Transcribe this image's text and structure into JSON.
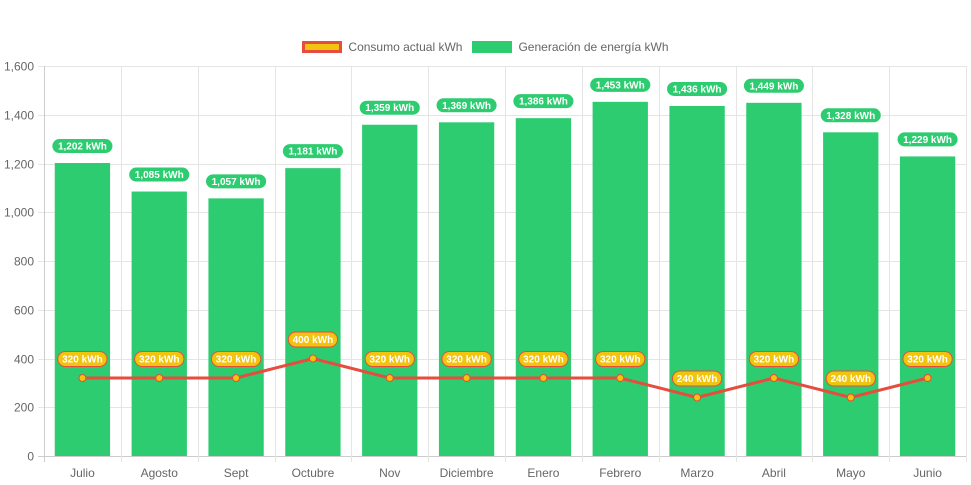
{
  "chart_data": {
    "type": "bar",
    "title": "",
    "xlabel": "",
    "ylabel": "",
    "ylim": [
      0,
      1600
    ],
    "yticks": [
      0,
      200,
      400,
      600,
      800,
      1000,
      1200,
      1400,
      1600
    ],
    "ytick_labels": [
      "0",
      "200",
      "400",
      "600",
      "800",
      "1,000",
      "1,200",
      "1,400",
      "1,600"
    ],
    "grid": true,
    "legend_position": "top",
    "categories": [
      "Julio",
      "Agosto",
      "Sept",
      "Octubre",
      "Nov",
      "Diciembre",
      "Enero",
      "Febrero",
      "Marzo",
      "Abril",
      "Mayo",
      "Junio"
    ],
    "series": [
      {
        "name": "Consumo actual kWh",
        "type": "line",
        "color": "#e74c3c",
        "fill_color": "#f1c40f",
        "values": [
          320,
          320,
          320,
          400,
          320,
          320,
          320,
          320,
          240,
          320,
          240,
          320
        ],
        "labels": [
          "320 kWh",
          "320 kWh",
          "320 kWh",
          "400 kWh",
          "320 kWh",
          "320 kWh",
          "320 kWh",
          "320 kWh",
          "240 kWh",
          "320 kWh",
          "240 kWh",
          "320 kWh"
        ]
      },
      {
        "name": "Generación de energía kWh",
        "type": "bar",
        "color": "#2ecc71",
        "values": [
          1202,
          1085,
          1057,
          1181,
          1359,
          1369,
          1386,
          1453,
          1436,
          1449,
          1328,
          1229
        ],
        "labels": [
          "1,202 kWh",
          "1,085 kWh",
          "1,057 kWh",
          "1,181 kWh",
          "1,359 kWh",
          "1,369 kWh",
          "1,386 kWh",
          "1,453 kWh",
          "1,436 kWh",
          "1,449 kWh",
          "1,328 kWh",
          "1,229 kWh"
        ]
      }
    ]
  },
  "legend": {
    "items": [
      {
        "label": "Consumo actual kWh",
        "fill": "#f1c40f",
        "border": "#e74c3c"
      },
      {
        "label": "Generación de energía kWh",
        "fill": "#2ecc71",
        "border": "#2ecc71"
      }
    ]
  }
}
